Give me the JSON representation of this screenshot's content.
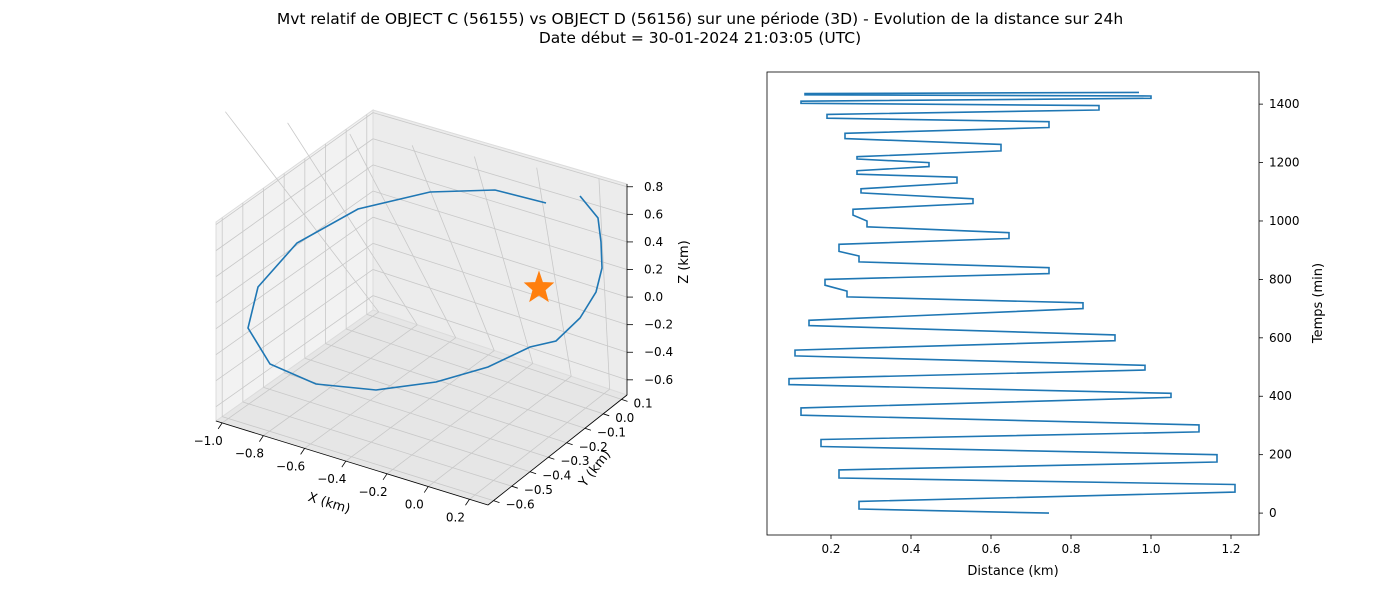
{
  "figure": {
    "title_line1": "Mvt relatif de OBJECT C (56155) vs OBJECT D (56156) sur une période (3D) - Evolution de la distance sur 24h",
    "title_line2": "Date début = 30-01-2024 21:03:05 (UTC)"
  },
  "colors": {
    "series": "#1f77b4",
    "marker": "#ff7f0e",
    "pane": "#f2f2f2",
    "grid": "#c8c8c8"
  },
  "chart_data": [
    {
      "type": "line3d",
      "xlabel": "X (km)",
      "ylabel": "Y (km)",
      "zlabel": "Z (km)",
      "xticks": [
        "−1.0",
        "−0.8",
        "−0.6",
        "−0.4",
        "−0.2",
        "0.0",
        "0.2"
      ],
      "yticks": [
        "0.1",
        "0.0",
        "−0.1",
        "−0.2",
        "−0.3",
        "−0.4",
        "−0.5",
        "−0.6"
      ],
      "zticks": [
        "0.8",
        "0.6",
        "0.4",
        "0.2",
        "0.0",
        "−0.2",
        "−0.4",
        "−0.6"
      ],
      "marker": {
        "shape": "star",
        "x": 0.0,
        "y": 0.0,
        "z": 0.0
      },
      "series": [
        {
          "points_xyz_approx": [
            [
              0.2,
              0.1,
              0.8
            ],
            [
              0.05,
              0.05,
              0.85
            ],
            [
              -0.2,
              0.0,
              0.85
            ],
            [
              -0.45,
              -0.05,
              0.78
            ],
            [
              -0.7,
              -0.15,
              0.6
            ],
            [
              -0.9,
              -0.3,
              0.3
            ],
            [
              -1.0,
              -0.45,
              0.0
            ],
            [
              -0.95,
              -0.55,
              -0.3
            ],
            [
              -0.75,
              -0.62,
              -0.5
            ],
            [
              -0.45,
              -0.62,
              -0.6
            ],
            [
              -0.15,
              -0.55,
              -0.55
            ],
            [
              0.1,
              -0.4,
              -0.4
            ],
            [
              0.25,
              -0.2,
              -0.2
            ],
            [
              0.3,
              0.0,
              0.1
            ],
            [
              0.28,
              0.1,
              0.45
            ]
          ]
        }
      ]
    },
    {
      "type": "line",
      "xlabel": "Distance (km)",
      "ylabel": "Temps (min)",
      "xticks": [
        "0.2",
        "0.4",
        "0.6",
        "0.8",
        "1.0",
        "1.2"
      ],
      "yticks": [
        "0",
        "200",
        "400",
        "600",
        "800",
        "1000",
        "1200",
        "1400"
      ],
      "xlim": [
        0.04,
        1.27
      ],
      "ylim": [
        -75,
        1510
      ],
      "series": [
        {
          "x_distance_km": [
            0.745,
            0.27,
            0.27,
            1.21,
            1.21,
            0.22,
            0.22,
            1.165,
            1.165,
            0.175,
            0.175,
            1.12,
            1.12,
            0.125,
            0.125,
            1.05,
            1.05,
            0.095,
            0.095,
            0.985,
            0.985,
            0.11,
            0.11,
            0.91,
            0.91,
            0.145,
            0.145,
            0.83,
            0.83,
            0.24,
            0.24,
            0.185,
            0.185,
            0.745,
            0.745,
            0.27,
            0.27,
            0.22,
            0.22,
            0.645,
            0.645,
            0.29,
            0.29,
            0.255,
            0.255,
            0.555,
            0.555,
            0.275,
            0.275,
            0.515,
            0.515,
            0.265,
            0.265,
            0.445,
            0.445,
            0.265,
            0.265,
            0.625,
            0.625,
            0.235,
            0.235,
            0.745,
            0.745,
            0.19,
            0.19,
            0.87,
            0.87,
            0.125,
            0.125,
            1.0,
            1.0,
            0.135,
            0.135,
            0.97
          ],
          "y_time_min": [
            0,
            14,
            40,
            72,
            98,
            120,
            148,
            175,
            200,
            228,
            252,
            278,
            302,
            335,
            360,
            396,
            410,
            440,
            460,
            490,
            506,
            538,
            558,
            590,
            610,
            642,
            660,
            700,
            720,
            740,
            760,
            780,
            800,
            820,
            840,
            860,
            880,
            896,
            920,
            940,
            960,
            980,
            1000,
            1020,
            1040,
            1060,
            1076,
            1096,
            1110,
            1130,
            1150,
            1160,
            1172,
            1186,
            1200,
            1212,
            1220,
            1240,
            1262,
            1282,
            1300,
            1320,
            1340,
            1352,
            1365,
            1380,
            1395,
            1403,
            1410,
            1420,
            1428,
            1432,
            1436,
            1440
          ]
        }
      ]
    }
  ]
}
